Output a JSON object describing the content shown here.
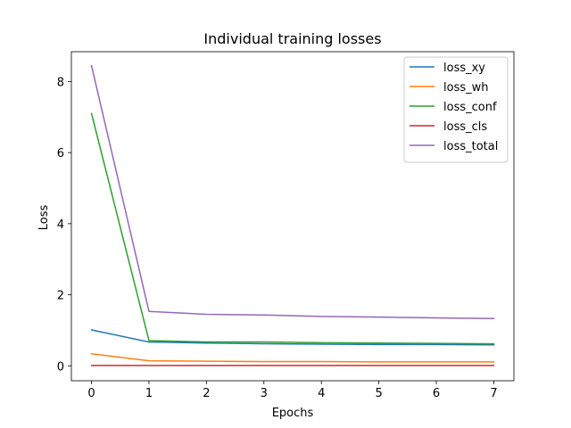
{
  "chart_data": {
    "type": "line",
    "title": "Individual training losses",
    "xlabel": "Epochs",
    "ylabel": "Loss",
    "x": [
      0,
      1,
      2,
      3,
      4,
      5,
      6,
      7
    ],
    "xlim": [
      -0.35,
      7.35
    ],
    "ylim": [
      -0.42,
      8.84
    ],
    "xticks": [
      0,
      1,
      2,
      3,
      4,
      5,
      6,
      7
    ],
    "yticks": [
      0,
      2,
      4,
      6,
      8
    ],
    "grid": false,
    "legend_position": "top-right",
    "series": [
      {
        "name": "loss_xy",
        "color": "#1f77b4",
        "values": [
          1.01,
          0.67,
          0.64,
          0.62,
          0.61,
          0.6,
          0.6,
          0.59
        ]
      },
      {
        "name": "loss_wh",
        "color": "#ff7f0e",
        "values": [
          0.34,
          0.14,
          0.13,
          0.12,
          0.12,
          0.11,
          0.11,
          0.11
        ]
      },
      {
        "name": "loss_conf",
        "color": "#2ca02c",
        "values": [
          7.1,
          0.71,
          0.67,
          0.67,
          0.65,
          0.64,
          0.63,
          0.62
        ]
      },
      {
        "name": "loss_cls",
        "color": "#d62728",
        "values": [
          0.01,
          0.01,
          0.01,
          0.01,
          0.01,
          0.01,
          0.01,
          0.01
        ]
      },
      {
        "name": "loss_total",
        "color": "#9467bd",
        "values": [
          8.45,
          1.53,
          1.45,
          1.43,
          1.39,
          1.37,
          1.35,
          1.33
        ]
      }
    ]
  }
}
